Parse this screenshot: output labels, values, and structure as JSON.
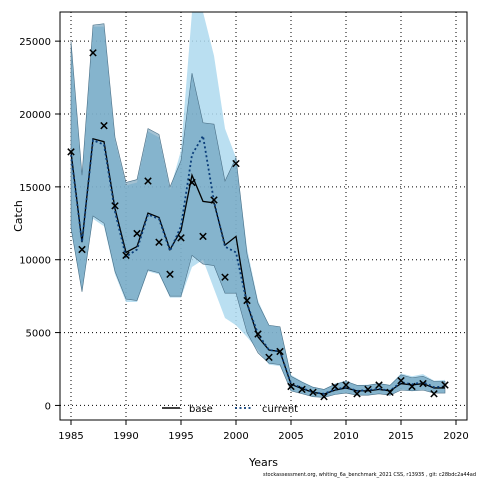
{
  "chart_data": {
    "type": "line",
    "title": "",
    "xlabel": "Years",
    "ylabel": "Catch",
    "xlim": [
      1984,
      2021
    ],
    "ylim": [
      -1000,
      27000
    ],
    "x_ticks": [
      1985,
      1990,
      1995,
      2000,
      2005,
      2010,
      2015,
      2020
    ],
    "y_ticks": [
      0,
      5000,
      10000,
      15000,
      20000,
      25000
    ],
    "grid": true,
    "legend_placement": "bottom-center",
    "colors": {
      "base_line": "#000000",
      "base_band": "#5a8fae",
      "current_line": "#0a3d7a",
      "current_band": "#aed9ef",
      "observed": "#000000"
    },
    "x": [
      1985,
      1986,
      1987,
      1988,
      1989,
      1990,
      1991,
      1992,
      1993,
      1994,
      1995,
      1996,
      1997,
      1998,
      1999,
      2000,
      2001,
      2002,
      2003,
      2004,
      2005,
      2006,
      2007,
      2008,
      2009,
      2010,
      2011,
      2012,
      2013,
      2014,
      2015,
      2016,
      2017,
      2018,
      2019
    ],
    "series": [
      {
        "name": "base",
        "style": "solid",
        "values": [
          17400,
          11200,
          18300,
          18100,
          13500,
          10500,
          10900,
          13200,
          12900,
          10700,
          12000,
          15800,
          14000,
          13900,
          11000,
          11600,
          7000,
          4700,
          3800,
          3700,
          1450,
          1150,
          900,
          780,
          1050,
          1200,
          1000,
          1000,
          1100,
          1000,
          1500,
          1400,
          1500,
          1200,
          1200
        ],
        "lower": [
          12200,
          7800,
          13000,
          12500,
          9200,
          7300,
          7200,
          9300,
          9100,
          7500,
          7500,
          10300,
          9700,
          9600,
          7700,
          7700,
          5000,
          3600,
          2900,
          2800,
          1000,
          800,
          600,
          550,
          750,
          850,
          700,
          700,
          800,
          700,
          1050,
          1000,
          1050,
          850,
          850
        ],
        "upper": [
          25000,
          15800,
          26100,
          26200,
          18400,
          15300,
          15500,
          19000,
          18600,
          15000,
          16800,
          22800,
          19400,
          19300,
          15400,
          17000,
          10400,
          7000,
          5500,
          5400,
          2000,
          1600,
          1250,
          1100,
          1450,
          1650,
          1380,
          1380,
          1500,
          1380,
          2100,
          1900,
          2000,
          1650,
          1650
        ]
      },
      {
        "name": "current",
        "style": "dotted",
        "values": [
          17200,
          11200,
          18200,
          17900,
          13300,
          10200,
          10700,
          13100,
          12800,
          10600,
          12300,
          17200,
          18500,
          14000,
          10900,
          10500,
          7000,
          4900,
          3800,
          3700,
          1500,
          1200,
          900,
          800,
          1100,
          1250,
          1000,
          1050,
          1150,
          1000,
          1600,
          1450,
          1600,
          1250,
          1300
        ],
        "lower": [
          12000,
          7800,
          12800,
          12300,
          9000,
          7100,
          7100,
          9200,
          9000,
          7400,
          7400,
          9500,
          10000,
          8000,
          6000,
          5500,
          4700,
          3800,
          2800,
          2700,
          1000,
          820,
          600,
          550,
          750,
          850,
          700,
          700,
          800,
          700,
          1100,
          1000,
          1100,
          850,
          880
        ],
        "upper": [
          24800,
          15900,
          26000,
          26000,
          18200,
          15100,
          15300,
          18800,
          18400,
          14800,
          17500,
          27000,
          27000,
          24000,
          19000,
          17000,
          10800,
          7200,
          5500,
          5400,
          2100,
          1650,
          1280,
          1120,
          1500,
          1700,
          1400,
          1420,
          1550,
          1400,
          2200,
          2000,
          2150,
          1700,
          1750
        ]
      }
    ],
    "observed": {
      "name": "observed catch",
      "marker": "x",
      "values": [
        17400,
        10700,
        24200,
        19200,
        13700,
        10300,
        11800,
        15400,
        11200,
        9000,
        11500,
        15300,
        11600,
        14100,
        8800,
        16600,
        7200,
        4900,
        3300,
        3700,
        1300,
        1100,
        900,
        600,
        1300,
        1400,
        800,
        1100,
        1400,
        900,
        1700,
        1300,
        1500,
        800,
        1400
      ]
    },
    "legend": [
      {
        "label": "base",
        "style": "solid"
      },
      {
        "label": "current",
        "style": "dotted"
      }
    ],
    "footer": "stockassessment.org, whiting_6a_benchmark_2021 CSS, r13935 , git: c28bdc2a44ad"
  }
}
